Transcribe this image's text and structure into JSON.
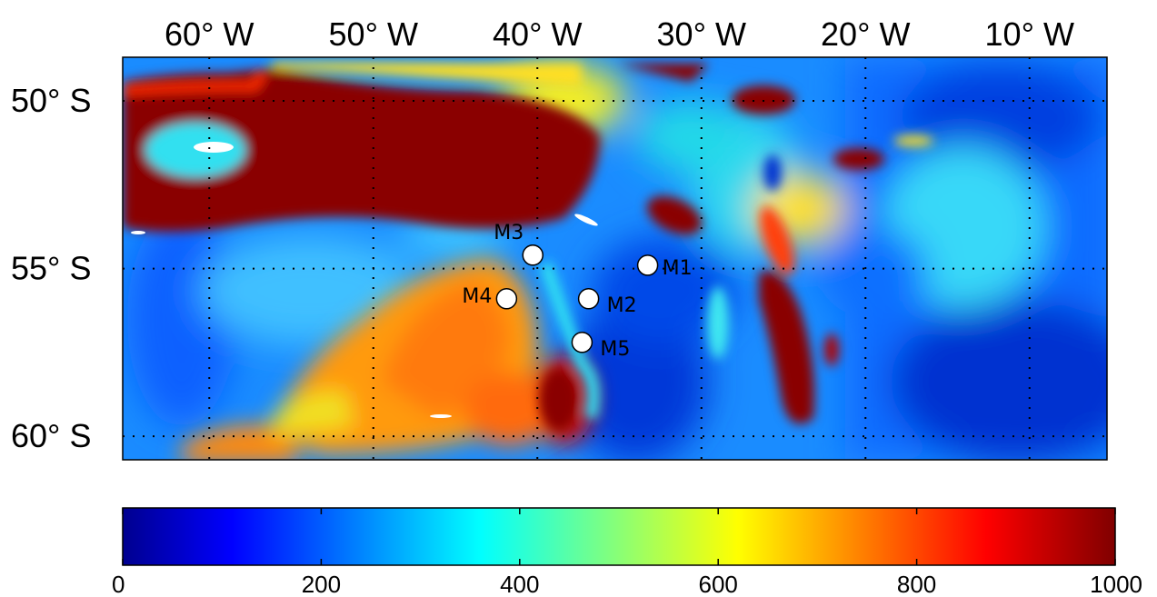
{
  "map": {
    "lon_labels": [
      "60° W",
      "50° W",
      "40° W",
      "30° W",
      "20° W",
      "10° W"
    ],
    "lat_labels": [
      "50° S",
      "55° S",
      "60° S"
    ],
    "lon_values": [
      -60,
      -50,
      -40,
      -30,
      -20,
      -10
    ],
    "lat_values": [
      -50,
      -55,
      -60
    ],
    "lon_range": [
      -65,
      -5
    ],
    "lat_range": [
      -50,
      -62
    ],
    "grid": "dotted",
    "colormap": "jet"
  },
  "moorings": [
    {
      "id": "M1",
      "label": "M1",
      "lon": -33,
      "lat": -56.2
    },
    {
      "id": "M2",
      "label": "M2",
      "lon": -36.6,
      "lat": -57.2
    },
    {
      "id": "M3",
      "label": "M3",
      "lon": -40,
      "lat": -55.9
    },
    {
      "id": "M4",
      "label": "M4",
      "lon": -41.6,
      "lat": -57.2
    },
    {
      "id": "M5",
      "label": "M5",
      "lon": -37,
      "lat": -58.5
    }
  ],
  "colorbar": {
    "ticks": [
      "0",
      "200",
      "400",
      "600",
      "800",
      "1000"
    ],
    "tick_values": [
      0,
      200,
      400,
      600,
      800,
      1000
    ],
    "range": [
      0,
      1000
    ]
  },
  "colors": {
    "dark_blue": "#00008f",
    "blue": "#0050ff",
    "cyan": "#20e8f0",
    "yellow": "#ffee00",
    "orange": "#ff8800",
    "red": "#ff1000",
    "dark_red": "#800000"
  }
}
